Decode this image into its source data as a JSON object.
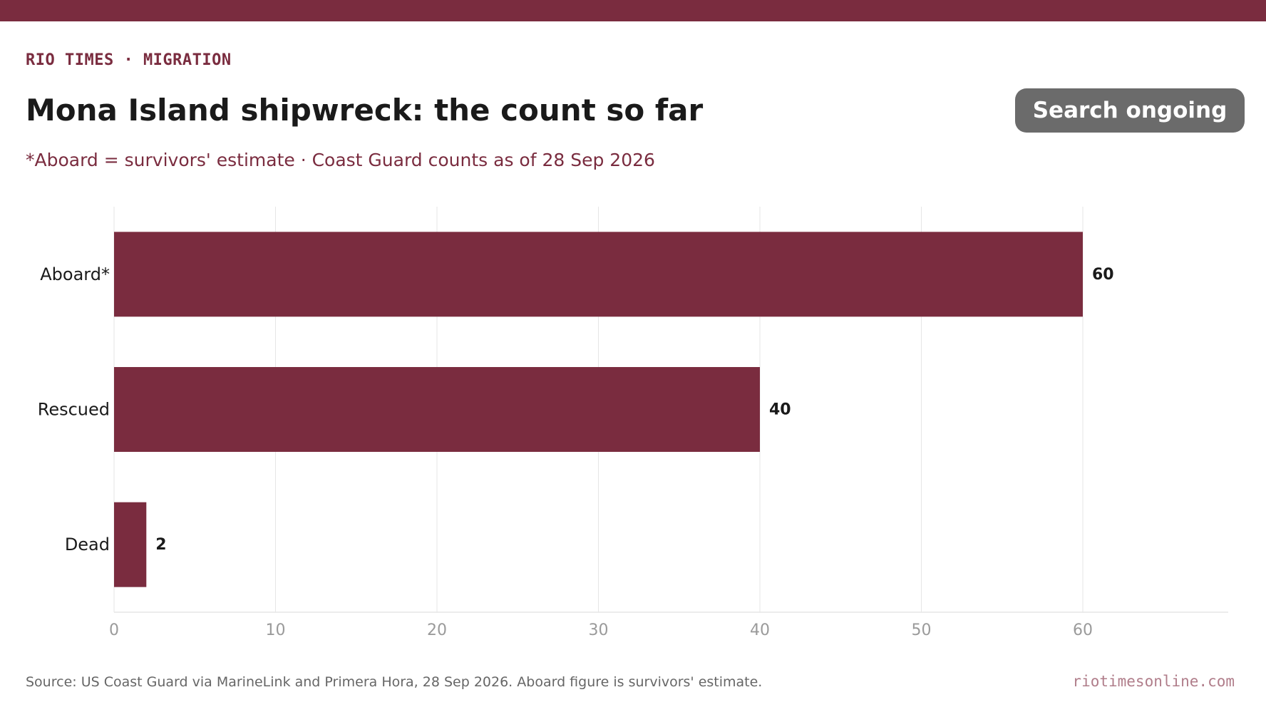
{
  "header": {
    "kicker": "RIO TIMES · MIGRATION",
    "title": "Mona Island shipwreck: the count so far",
    "badge": "Search ongoing",
    "subtitle": "*Aboard = survivors' estimate · Coast Guard counts as of 28 Sep 2026"
  },
  "footer": {
    "source": "Source: US Coast Guard via MarineLink and Primera Hora, 28 Sep 2026. Aboard figure is survivors' estimate.",
    "site": "riotimesonline.com"
  },
  "colors": {
    "brand": "#7a2c3f",
    "bar": "#7a2c3f",
    "badge_bg": "#6b6b6b",
    "grid": "#e6e6e6",
    "tick_text": "#9a9a9a",
    "site_text": "#b07d8a"
  },
  "chart_data": {
    "type": "bar",
    "orientation": "horizontal",
    "categories": [
      "Aboard*",
      "Rescued",
      "Dead"
    ],
    "values": [
      60,
      40,
      2
    ],
    "data_labels": [
      "60",
      "40",
      "2"
    ],
    "xlim": [
      0,
      69
    ],
    "xticks": [
      0,
      10,
      20,
      30,
      40,
      50,
      60
    ],
    "grid": "vertical",
    "xlabel": "",
    "ylabel": ""
  }
}
